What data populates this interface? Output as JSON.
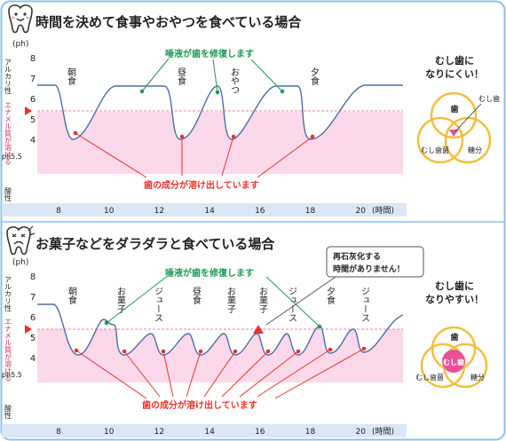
{
  "top": {
    "title": "時間を決めて食事やおやつを食べている場合",
    "y_unit": "(ph)",
    "axis_group_label": "アルカリ性",
    "enamel_label": "エナメル質が溶ける",
    "ph55_label": "ph5.5",
    "acid_label": "酸性",
    "y_ticks": [
      "8",
      "7",
      "6",
      "5",
      "4"
    ],
    "x_ticks": [
      "8",
      "10",
      "12",
      "14",
      "16",
      "18",
      "20"
    ],
    "x_unit": "(時間)",
    "meals": [
      "朝食",
      "昼食",
      "おやつ",
      "夕食"
    ],
    "saliva_note": "唾液が歯を修復します",
    "dissolve_note": "歯の成分が溶け出しています"
  },
  "bottom": {
    "title": "お菓子などをダラダラと食べている場合",
    "y_unit": "(ph)",
    "axis_group_label": "アルカリ性",
    "enamel_label": "エナメル質が溶ける",
    "ph55_label": "ph5.5",
    "acid_label": "酸性",
    "y_ticks": [
      "8",
      "7",
      "6",
      "5",
      "4"
    ],
    "x_ticks": [
      "8",
      "10",
      "12",
      "14",
      "16",
      "18",
      "20"
    ],
    "x_unit": "(時間)",
    "events": [
      "朝食",
      "お菓子",
      "ジュース",
      "昼食",
      "お菓子",
      "お菓子",
      "ジュース",
      "夕食",
      "ジュース"
    ],
    "saliva_note": "唾液が歯を修復します",
    "dissolve_note": "歯の成分が溶け出しています",
    "callout_line1": "再石灰化する",
    "callout_line2": "時間がありません！"
  },
  "venn_top": {
    "title_line1": "むし歯に",
    "title_line2": "なりにくい！",
    "teeth": "歯",
    "cavity": "むし歯",
    "bacteria": "むし歯菌",
    "sugar": "糖分"
  },
  "venn_bottom": {
    "title_line1": "むし歯に",
    "title_line2": "なりやすい！",
    "teeth": "歯",
    "cavity": "むし歯",
    "bacteria": "むし歯菌",
    "sugar": "糖分"
  },
  "colors": {
    "frame": "#8fc0e6",
    "curve": "#4f6da8",
    "threshold": "#f080a8",
    "pink_fill": "#fbd9ea",
    "saliva_green": "#1f9a56",
    "dissolve_red": "#e8322b",
    "ring": "#f2bf3c",
    "cavity_pink": "#ea4f9a",
    "axis_band": "#dbe7f5"
  }
}
